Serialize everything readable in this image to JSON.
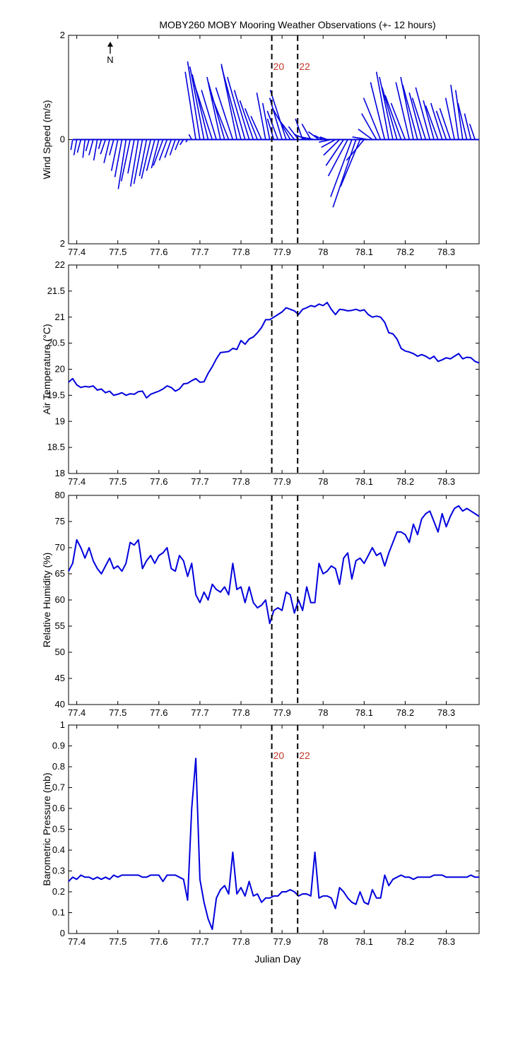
{
  "figure": {
    "title": "MOBY260 MOBY Mooring Weather Observations (+- 12 hours)",
    "xlabel": "Julian Day",
    "north_label": "N",
    "line_color": "#0000dd",
    "marker_color": "#c0392b",
    "x_ticks": [
      "77.4",
      "77.5",
      "77.6",
      "77.7",
      "77.8",
      "77.9",
      "78",
      "78.1",
      "78.2",
      "78.3"
    ]
  },
  "chart_data": [
    {
      "type": "quiver",
      "name": "wind",
      "ylabel": "Wind Speed (m/s)",
      "xlim": [
        77.38,
        78.38
      ],
      "ylim": [
        -2,
        2
      ],
      "y_tick_labels": {
        "2": "2",
        "0": "0",
        "-2": "2"
      },
      "markers": [
        {
          "x": 77.875,
          "label": "20"
        },
        {
          "x": 77.938,
          "label": "22"
        }
      ],
      "x": [
        77.39,
        77.4,
        77.41,
        77.42,
        77.43,
        77.44,
        77.45,
        77.46,
        77.47,
        77.48,
        77.49,
        77.5,
        77.51,
        77.52,
        77.53,
        77.54,
        77.55,
        77.56,
        77.57,
        77.58,
        77.59,
        77.6,
        77.61,
        77.62,
        77.63,
        77.64,
        77.65,
        77.66,
        77.67,
        77.68,
        77.69,
        77.7,
        77.71,
        77.72,
        77.73,
        77.74,
        77.75,
        77.76,
        77.77,
        77.78,
        77.79,
        77.8,
        77.81,
        77.82,
        77.83,
        77.84,
        77.85,
        77.86,
        77.87,
        77.88,
        77.89,
        77.9,
        77.91,
        77.92,
        77.93,
        77.94,
        77.95,
        77.96,
        77.97,
        77.98,
        77.99,
        78.0,
        78.01,
        78.02,
        78.03,
        78.04,
        78.05,
        78.06,
        78.07,
        78.08,
        78.09,
        78.1,
        78.11,
        78.12,
        78.13,
        78.14,
        78.15,
        78.16,
        78.17,
        78.18,
        78.19,
        78.2,
        78.21,
        78.22,
        78.23,
        78.24,
        78.25,
        78.26,
        78.27,
        78.28,
        78.29,
        78.3,
        78.31,
        78.32,
        78.33,
        78.34,
        78.35,
        78.36,
        78.37
      ],
      "u": [
        -0.05,
        -0.08,
        -0.1,
        -0.06,
        -0.09,
        -0.12,
        -0.1,
        -0.08,
        -0.14,
        -0.16,
        -0.12,
        -0.18,
        -0.2,
        -0.22,
        -0.25,
        -0.18,
        -0.22,
        -0.24,
        -0.2,
        -0.26,
        -0.23,
        -0.21,
        -0.27,
        -0.22,
        -0.18,
        -0.15,
        -0.12,
        -0.1,
        -0.05,
        -0.08,
        -0.3,
        -0.35,
        -0.4,
        -0.45,
        -0.5,
        -0.42,
        -0.38,
        -0.46,
        -0.52,
        -0.48,
        -0.44,
        -0.55,
        -0.5,
        -0.42,
        -0.38,
        -0.35,
        -0.3,
        -0.25,
        -0.2,
        -0.18,
        -0.3,
        -0.35,
        -0.45,
        -0.5,
        -0.4,
        -0.28,
        -0.2,
        -0.35,
        -0.25,
        -0.4,
        -0.3,
        -0.25,
        -0.2,
        -0.35,
        -0.4,
        -0.45,
        -0.5,
        -0.55,
        -0.6,
        -0.65,
        -0.55,
        -0.5,
        -0.45,
        -0.4,
        -0.42,
        -0.48,
        -0.4,
        -0.35,
        -0.38,
        -0.42,
        -0.45,
        -0.4,
        -0.38,
        -0.36,
        -0.42,
        -0.35,
        -0.38,
        -0.4,
        -0.3,
        -0.35,
        -0.32,
        -0.28,
        -0.3,
        -0.25,
        -0.22,
        -0.2,
        -0.25,
        -0.18,
        -0.15
      ],
      "v": [
        -0.2,
        -0.3,
        -0.25,
        -0.35,
        -0.22,
        -0.3,
        -0.4,
        -0.18,
        -0.28,
        -0.45,
        -0.3,
        -0.6,
        -0.72,
        -0.95,
        -0.8,
        -0.65,
        -0.9,
        -0.85,
        -0.7,
        -0.75,
        -0.6,
        -0.55,
        -0.5,
        -0.4,
        -0.35,
        -0.3,
        -0.2,
        -0.1,
        -0.05,
        0.1,
        1.3,
        1.5,
        1.4,
        1.25,
        1.05,
        0.95,
        1.2,
        1.1,
        0.9,
        1.0,
        1.45,
        1.4,
        1.2,
        0.95,
        0.75,
        0.6,
        0.45,
        0.9,
        0.7,
        0.4,
        0.55,
        0.8,
        0.95,
        0.6,
        0.35,
        0.25,
        0.4,
        0.1,
        0.3,
        0.05,
        0.15,
        0.08,
        0.05,
        -0.05,
        -0.15,
        -0.3,
        -0.5,
        -0.7,
        -1.1,
        -1.3,
        -0.9,
        -0.4,
        0.05,
        0.2,
        0.5,
        0.8,
        1.1,
        1.3,
        1.2,
        1.0,
        0.85,
        0.7,
        1.1,
        1.2,
        1.05,
        0.9,
        0.8,
        1.0,
        0.75,
        0.65,
        0.7,
        0.55,
        0.6,
        0.8,
        1.05,
        0.95,
        0.7,
        0.5,
        0.3
      ]
    },
    {
      "type": "line",
      "name": "air_temperature",
      "ylabel": "Air Temperature (°C)",
      "xlim": [
        77.38,
        78.38
      ],
      "ylim": [
        18,
        22
      ],
      "y_ticks": [
        18,
        18.5,
        19,
        19.5,
        20,
        20.5,
        21,
        21.5,
        22
      ],
      "markers": [
        {
          "x": 77.875
        },
        {
          "x": 77.938
        }
      ],
      "x": [
        77.38,
        77.39,
        77.4,
        77.41,
        77.42,
        77.43,
        77.44,
        77.45,
        77.46,
        77.47,
        77.48,
        77.49,
        77.5,
        77.51,
        77.52,
        77.53,
        77.54,
        77.55,
        77.56,
        77.57,
        77.58,
        77.59,
        77.6,
        77.61,
        77.62,
        77.63,
        77.64,
        77.65,
        77.66,
        77.67,
        77.68,
        77.69,
        77.7,
        77.71,
        77.72,
        77.73,
        77.74,
        77.75,
        77.76,
        77.77,
        77.78,
        77.79,
        77.8,
        77.81,
        77.82,
        77.83,
        77.84,
        77.85,
        77.86,
        77.87,
        77.88,
        77.89,
        77.9,
        77.91,
        77.92,
        77.93,
        77.94,
        77.95,
        77.96,
        77.97,
        77.98,
        77.99,
        78.0,
        78.01,
        78.02,
        78.03,
        78.04,
        78.05,
        78.06,
        78.07,
        78.08,
        78.09,
        78.1,
        78.11,
        78.12,
        78.13,
        78.14,
        78.15,
        78.16,
        78.17,
        78.18,
        78.19,
        78.2,
        78.21,
        78.22,
        78.23,
        78.24,
        78.25,
        78.26,
        78.27,
        78.28,
        78.29,
        78.3,
        78.31,
        78.32,
        78.33,
        78.34,
        78.35,
        78.36,
        78.37,
        78.38
      ],
      "y": [
        19.75,
        19.82,
        19.7,
        19.65,
        19.67,
        19.66,
        19.68,
        19.6,
        19.62,
        19.55,
        19.58,
        19.5,
        19.52,
        19.55,
        19.5,
        19.53,
        19.52,
        19.57,
        19.58,
        19.45,
        19.52,
        19.55,
        19.58,
        19.62,
        19.68,
        19.65,
        19.58,
        19.62,
        19.72,
        19.73,
        19.78,
        19.82,
        19.75,
        19.76,
        19.92,
        20.05,
        20.2,
        20.32,
        20.33,
        20.34,
        20.4,
        20.38,
        20.55,
        20.48,
        20.58,
        20.62,
        20.7,
        20.8,
        20.95,
        20.95,
        21.0,
        21.05,
        21.1,
        21.18,
        21.15,
        21.12,
        21.05,
        21.15,
        21.18,
        21.22,
        21.2,
        21.25,
        21.22,
        21.28,
        21.15,
        21.05,
        21.15,
        21.14,
        21.12,
        21.13,
        21.15,
        21.12,
        21.14,
        21.05,
        21.0,
        21.02,
        21.0,
        20.9,
        20.7,
        20.68,
        20.58,
        20.4,
        20.35,
        20.33,
        20.3,
        20.25,
        20.28,
        20.25,
        20.2,
        20.25,
        20.15,
        20.18,
        20.22,
        20.2,
        20.25,
        20.3,
        20.2,
        20.23,
        20.22,
        20.15,
        20.12
      ]
    },
    {
      "type": "line",
      "name": "relative_humidity",
      "ylabel": "Relative Humidity (%)",
      "xlim": [
        77.38,
        78.38
      ],
      "ylim": [
        40,
        80
      ],
      "y_ticks": [
        40,
        45,
        50,
        55,
        60,
        65,
        70,
        75,
        80
      ],
      "markers": [
        {
          "x": 77.875
        },
        {
          "x": 77.938
        }
      ],
      "x": [
        77.38,
        77.39,
        77.4,
        77.41,
        77.42,
        77.43,
        77.44,
        77.45,
        77.46,
        77.47,
        77.48,
        77.49,
        77.5,
        77.51,
        77.52,
        77.53,
        77.54,
        77.55,
        77.56,
        77.57,
        77.58,
        77.59,
        77.6,
        77.61,
        77.62,
        77.63,
        77.64,
        77.65,
        77.66,
        77.67,
        77.68,
        77.69,
        77.7,
        77.71,
        77.72,
        77.73,
        77.74,
        77.75,
        77.76,
        77.77,
        77.78,
        77.79,
        77.8,
        77.81,
        77.82,
        77.83,
        77.84,
        77.85,
        77.86,
        77.87,
        77.88,
        77.89,
        77.9,
        77.91,
        77.92,
        77.93,
        77.94,
        77.95,
        77.96,
        77.97,
        77.98,
        77.99,
        78.0,
        78.01,
        78.02,
        78.03,
        78.04,
        78.05,
        78.06,
        78.07,
        78.08,
        78.09,
        78.1,
        78.11,
        78.12,
        78.13,
        78.14,
        78.15,
        78.16,
        78.17,
        78.18,
        78.19,
        78.2,
        78.21,
        78.22,
        78.23,
        78.24,
        78.25,
        78.26,
        78.27,
        78.28,
        78.29,
        78.3,
        78.31,
        78.32,
        78.33,
        78.34,
        78.35,
        78.36,
        78.37,
        78.38
      ],
      "y": [
        65.5,
        67.0,
        71.5,
        70.0,
        68.0,
        70.0,
        67.5,
        66.0,
        65.0,
        66.5,
        68.0,
        66.0,
        66.5,
        65.5,
        67.0,
        71.0,
        70.5,
        71.5,
        66.0,
        67.5,
        68.5,
        67.0,
        68.5,
        69.0,
        70.0,
        66.0,
        65.5,
        68.5,
        67.5,
        64.5,
        67.0,
        61.0,
        59.5,
        61.5,
        60.0,
        63.0,
        62.0,
        61.5,
        62.5,
        61.0,
        67.0,
        62.0,
        62.5,
        59.5,
        62.5,
        59.5,
        58.5,
        59.0,
        60.0,
        55.5,
        58.0,
        58.5,
        58.0,
        61.5,
        61.0,
        57.5,
        60.0,
        58.0,
        62.5,
        59.5,
        59.5,
        67.0,
        65.0,
        65.5,
        66.5,
        66.0,
        63.0,
        68.0,
        69.0,
        64.0,
        67.5,
        68.0,
        67.0,
        68.5,
        70.0,
        68.5,
        69.0,
        66.5,
        69.0,
        71.0,
        73.0,
        73.0,
        72.5,
        71.0,
        74.5,
        72.5,
        75.5,
        76.5,
        77.0,
        75.0,
        73.0,
        76.5,
        74.0,
        76.0,
        77.5,
        78.0,
        77.0,
        77.5,
        77.0,
        76.5,
        76.0
      ]
    },
    {
      "type": "line",
      "name": "barometric_pressure",
      "ylabel": "Barometric Pressure (mb)",
      "xlabel": "Julian Day",
      "xlim": [
        77.38,
        78.38
      ],
      "ylim": [
        0,
        1
      ],
      "y_ticks": [
        0,
        0.1,
        0.2,
        0.3,
        0.4,
        0.5,
        0.6,
        0.7,
        0.8,
        0.9,
        1
      ],
      "markers": [
        {
          "x": 77.875,
          "label": "20"
        },
        {
          "x": 77.938,
          "label": "22"
        }
      ],
      "x": [
        77.38,
        77.39,
        77.4,
        77.41,
        77.42,
        77.43,
        77.44,
        77.45,
        77.46,
        77.47,
        77.48,
        77.49,
        77.5,
        77.51,
        77.52,
        77.53,
        77.54,
        77.55,
        77.56,
        77.57,
        77.58,
        77.59,
        77.6,
        77.61,
        77.62,
        77.63,
        77.64,
        77.65,
        77.66,
        77.67,
        77.68,
        77.69,
        77.7,
        77.71,
        77.72,
        77.73,
        77.74,
        77.75,
        77.76,
        77.77,
        77.78,
        77.79,
        77.8,
        77.81,
        77.82,
        77.83,
        77.84,
        77.85,
        77.86,
        77.87,
        77.88,
        77.89,
        77.9,
        77.91,
        77.92,
        77.93,
        77.94,
        77.95,
        77.96,
        77.97,
        77.98,
        77.99,
        78.0,
        78.01,
        78.02,
        78.03,
        78.04,
        78.05,
        78.06,
        78.07,
        78.08,
        78.09,
        78.1,
        78.11,
        78.12,
        78.13,
        78.14,
        78.15,
        78.16,
        78.17,
        78.18,
        78.19,
        78.2,
        78.21,
        78.22,
        78.23,
        78.24,
        78.25,
        78.26,
        78.27,
        78.28,
        78.29,
        78.3,
        78.31,
        78.32,
        78.33,
        78.34,
        78.35,
        78.36,
        78.37,
        78.38
      ],
      "y": [
        0.25,
        0.27,
        0.26,
        0.28,
        0.27,
        0.27,
        0.26,
        0.27,
        0.26,
        0.27,
        0.26,
        0.28,
        0.27,
        0.28,
        0.28,
        0.28,
        0.28,
        0.28,
        0.27,
        0.27,
        0.28,
        0.28,
        0.28,
        0.25,
        0.28,
        0.28,
        0.28,
        0.27,
        0.26,
        0.16,
        0.6,
        0.84,
        0.26,
        0.15,
        0.07,
        0.02,
        0.17,
        0.21,
        0.23,
        0.19,
        0.39,
        0.19,
        0.22,
        0.18,
        0.25,
        0.18,
        0.19,
        0.15,
        0.17,
        0.17,
        0.18,
        0.18,
        0.2,
        0.2,
        0.21,
        0.2,
        0.18,
        0.19,
        0.19,
        0.18,
        0.39,
        0.17,
        0.18,
        0.18,
        0.17,
        0.12,
        0.22,
        0.2,
        0.17,
        0.15,
        0.14,
        0.2,
        0.15,
        0.14,
        0.21,
        0.17,
        0.17,
        0.28,
        0.23,
        0.26,
        0.27,
        0.28,
        0.27,
        0.27,
        0.26,
        0.27,
        0.27,
        0.27,
        0.27,
        0.28,
        0.28,
        0.28,
        0.27,
        0.27,
        0.27,
        0.27,
        0.27,
        0.27,
        0.28,
        0.27,
        0.27
      ]
    }
  ]
}
